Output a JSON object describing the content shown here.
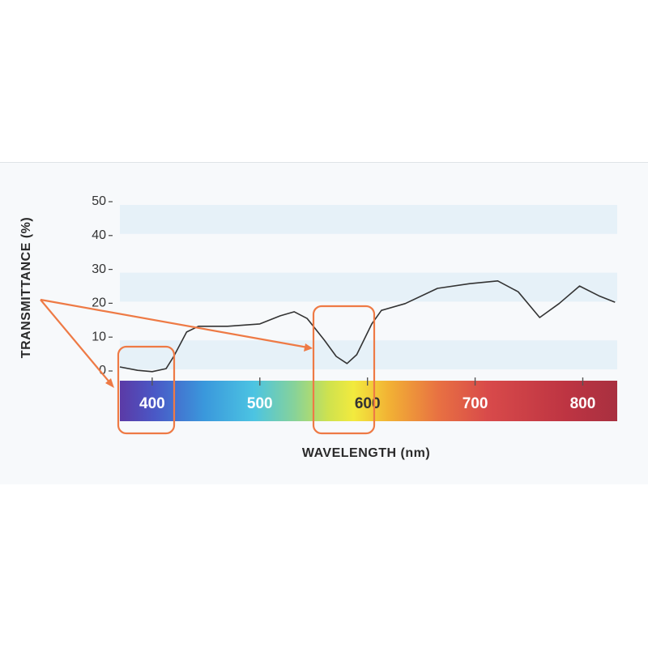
{
  "chart_data": {
    "type": "line",
    "x_label": "WAVELENGTH (nm)",
    "y_label": "TRANSMITTANCE (%)",
    "xlim": [
      370,
      832
    ],
    "ylim": [
      0,
      50
    ],
    "xticks": [
      400,
      500,
      600,
      700,
      800
    ],
    "yticks": [
      0,
      10,
      20,
      30,
      40,
      50
    ],
    "series": [
      {
        "color": "#333333",
        "x": [
          370,
          386.5,
          400,
          413,
          420,
          432,
          443,
          470,
          500,
          519,
          532,
          544,
          560,
          571,
          581,
          590,
          604,
          613,
          635,
          665,
          695,
          721,
          740,
          760,
          778,
          797,
          815,
          830
        ],
        "values": [
          1.2,
          0.2,
          -0.2,
          0.7,
          4.3,
          11.5,
          13.2,
          13.2,
          13.9,
          16.3,
          17.5,
          15.5,
          9.1,
          4.3,
          2.2,
          4.8,
          13.9,
          17.9,
          19.9,
          24.4,
          25.8,
          26.6,
          23.4,
          15.8,
          19.9,
          25.1,
          22.2,
          20.3
        ]
      }
    ]
  }
}
